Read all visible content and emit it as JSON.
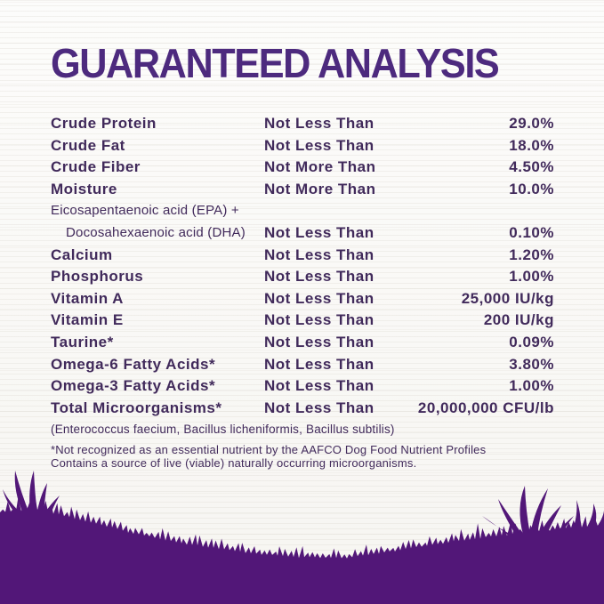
{
  "title": "GUARANTEED ANALYSIS",
  "colors": {
    "title_purple": "#4d2a7e",
    "body_text_purple": "#412a5b",
    "grass_purple": "#521778",
    "background": "#f9f8f5"
  },
  "analysis": {
    "rows": [
      {
        "name": "Crude Protein",
        "condition": "Not Less Than",
        "value": "29.0%"
      },
      {
        "name": "Crude Fat",
        "condition": "Not Less Than",
        "value": "18.0%"
      },
      {
        "name": "Crude Fiber",
        "condition": "Not More Than",
        "value": "4.50%"
      },
      {
        "name": "Moisture",
        "condition": "Not More Than",
        "value": "10.0%"
      },
      {
        "name_line1": "Eicosapentaenoic acid (EPA) +",
        "name_line2": "Docosahexaenoic acid (DHA)",
        "condition": "Not Less Than",
        "value": "0.10%"
      },
      {
        "name": "Calcium",
        "condition": "Not Less Than",
        "value": "1.20%"
      },
      {
        "name": "Phosphorus",
        "condition": "Not Less Than",
        "value": "1.00%"
      },
      {
        "name": "Vitamin A",
        "condition": "Not Less Than",
        "value": "25,000 IU/kg"
      },
      {
        "name": "Vitamin E",
        "condition": "Not Less Than",
        "value": "200 IU/kg"
      },
      {
        "name": "Taurine*",
        "condition": "Not Less Than",
        "value": "0.09%"
      },
      {
        "name": "Omega-6 Fatty Acids*",
        "condition": "Not Less Than",
        "value": "3.80%"
      },
      {
        "name": "Omega-3 Fatty Acids*",
        "condition": "Not Less Than",
        "value": "1.00%"
      },
      {
        "name": "Total Microorganisms*",
        "condition": "Not Less Than",
        "value": "20,000,000 CFU/lb"
      }
    ],
    "microorganism_strains": "(Enterococcus faecium, Bacillus licheniformis, Bacillus subtilis)",
    "footnote_line1": "*Not recognized as an essential nutrient by the AAFCO Dog Food Nutrient Profiles",
    "footnote_line2": "Contains a source of live (viable) naturally occurring microorganisms."
  }
}
